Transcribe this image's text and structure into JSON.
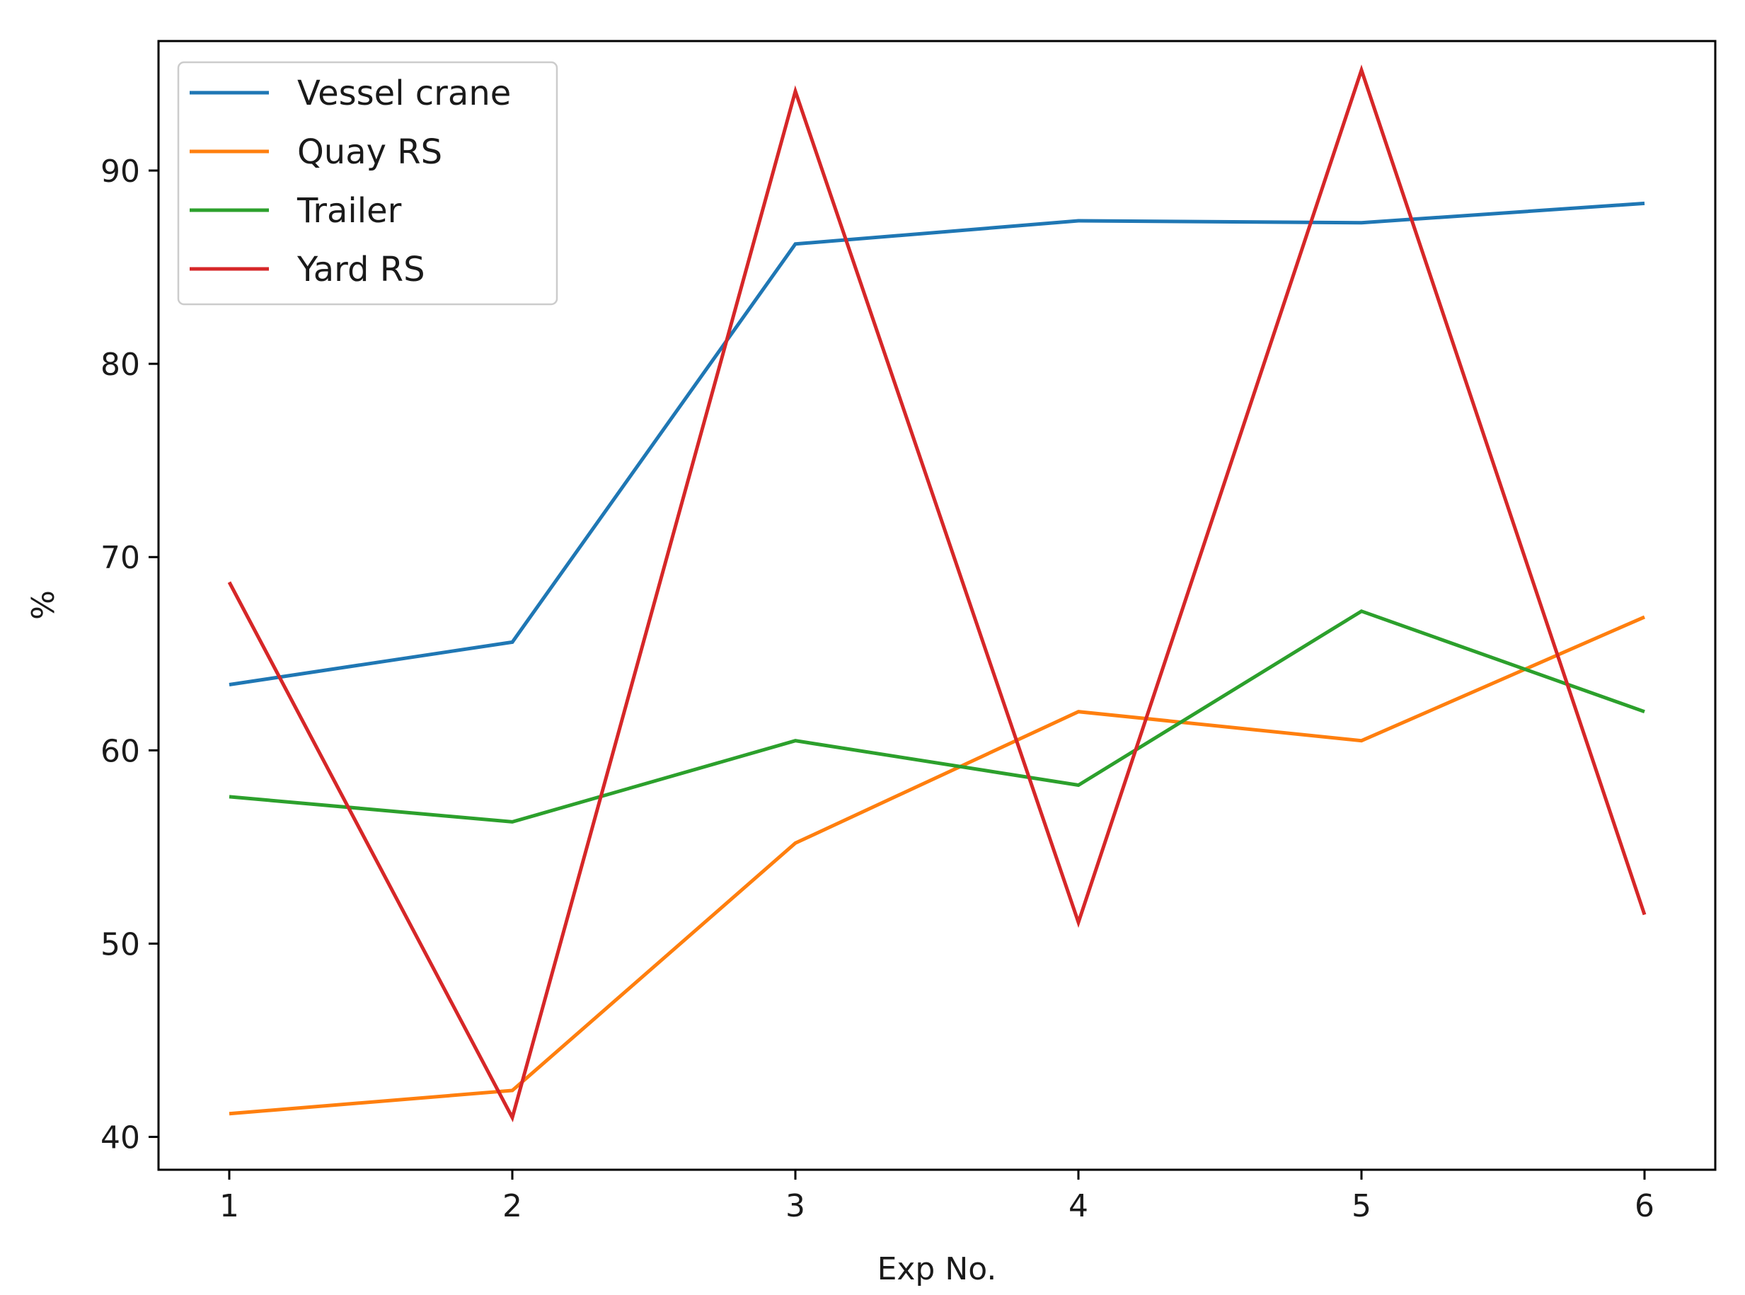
{
  "chart_data": {
    "type": "line",
    "title": "",
    "xlabel": "Exp No.",
    "ylabel": "%",
    "x": [
      1,
      2,
      3,
      4,
      5,
      6
    ],
    "xlim": [
      0.75,
      6.25
    ],
    "ylim": [
      38.3,
      96.7
    ],
    "xticks": [
      1,
      2,
      3,
      4,
      5,
      6
    ],
    "yticks": [
      40,
      50,
      60,
      70,
      80,
      90
    ],
    "grid": false,
    "legend_position": "top-left",
    "series": [
      {
        "name": "Vessel crane",
        "color": "#1f77b4",
        "values": [
          63.4,
          65.6,
          86.2,
          87.4,
          87.3,
          88.3
        ]
      },
      {
        "name": "Quay RS",
        "color": "#ff7f0e",
        "values": [
          41.2,
          42.4,
          55.2,
          62.0,
          60.5,
          66.9
        ]
      },
      {
        "name": "Trailer",
        "color": "#2ca02c",
        "values": [
          57.6,
          56.3,
          60.5,
          58.2,
          67.2,
          62.0
        ]
      },
      {
        "name": "Yard RS",
        "color": "#d62728",
        "values": [
          68.7,
          41.0,
          94.1,
          51.1,
          95.2,
          51.5
        ]
      }
    ]
  }
}
